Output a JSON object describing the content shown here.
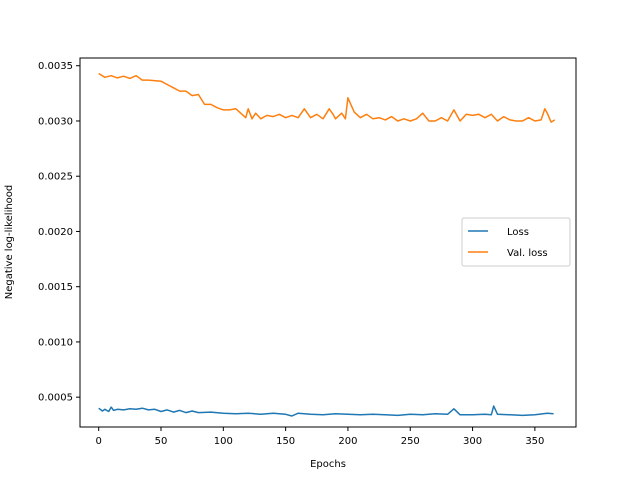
{
  "chart_data": {
    "type": "line",
    "title": "",
    "xlabel": "Epochs",
    "ylabel": "Negative log-likelihood",
    "xlim": [
      -15,
      383
    ],
    "ylim": [
      0.00023,
      0.00357
    ],
    "xticks": [
      0,
      50,
      100,
      150,
      200,
      250,
      300,
      350
    ],
    "yticks": [
      0.0005,
      0.001,
      0.0015,
      0.002,
      0.0025,
      0.003,
      0.0035
    ],
    "ytick_labels": [
      "0.0005",
      "0.0010",
      "0.0015",
      "0.0020",
      "0.0025",
      "0.0030",
      "0.0035"
    ],
    "grid": false,
    "legend_position": "center-right",
    "series": [
      {
        "name": "Loss",
        "color": "#1f77b4",
        "x": [
          0,
          3,
          5,
          8,
          10,
          12,
          15,
          20,
          25,
          30,
          35,
          40,
          45,
          50,
          55,
          60,
          65,
          70,
          75,
          80,
          90,
          100,
          110,
          120,
          130,
          140,
          150,
          155,
          160,
          170,
          180,
          190,
          200,
          210,
          220,
          230,
          240,
          250,
          260,
          270,
          280,
          285,
          290,
          300,
          310,
          315,
          317,
          320,
          330,
          340,
          350,
          360,
          365
        ],
        "y": [
          0.0004,
          0.000375,
          0.00039,
          0.00037,
          0.00041,
          0.00038,
          0.00039,
          0.000385,
          0.000395,
          0.00039,
          0.0004,
          0.000385,
          0.00039,
          0.00037,
          0.000385,
          0.000365,
          0.00038,
          0.00036,
          0.000375,
          0.00036,
          0.000365,
          0.000355,
          0.00035,
          0.000355,
          0.000345,
          0.000355,
          0.000345,
          0.00033,
          0.000355,
          0.000345,
          0.00034,
          0.00035,
          0.000345,
          0.00034,
          0.000345,
          0.00034,
          0.000335,
          0.000345,
          0.00034,
          0.00035,
          0.000345,
          0.000395,
          0.00034,
          0.00034,
          0.000345,
          0.00034,
          0.00042,
          0.000345,
          0.00034,
          0.000335,
          0.00034,
          0.000355,
          0.00035
        ]
      },
      {
        "name": "Val. loss",
        "color": "#ff7f0e",
        "x": [
          0,
          5,
          10,
          15,
          20,
          25,
          30,
          35,
          40,
          50,
          55,
          60,
          65,
          70,
          75,
          80,
          85,
          90,
          95,
          100,
          105,
          110,
          115,
          118,
          120,
          123,
          126,
          130,
          135,
          140,
          145,
          150,
          155,
          160,
          165,
          170,
          175,
          180,
          185,
          188,
          190,
          195,
          198,
          200,
          205,
          210,
          215,
          220,
          225,
          230,
          235,
          240,
          245,
          250,
          255,
          260,
          265,
          270,
          275,
          280,
          285,
          290,
          295,
          300,
          305,
          310,
          315,
          320,
          325,
          330,
          335,
          340,
          345,
          350,
          355,
          358,
          360,
          363,
          366
        ],
        "y": [
          0.00343,
          0.003395,
          0.00341,
          0.00339,
          0.003405,
          0.003385,
          0.00341,
          0.00337,
          0.00337,
          0.00336,
          0.00333,
          0.0033,
          0.00327,
          0.00327,
          0.00323,
          0.00324,
          0.00315,
          0.00315,
          0.00312,
          0.0031,
          0.0031,
          0.00311,
          0.00306,
          0.00303,
          0.00311,
          0.00302,
          0.00307,
          0.00302,
          0.00305,
          0.00304,
          0.00306,
          0.00303,
          0.00305,
          0.00303,
          0.00311,
          0.00303,
          0.00306,
          0.00302,
          0.00311,
          0.00306,
          0.00302,
          0.00307,
          0.00302,
          0.00321,
          0.00308,
          0.00303,
          0.00306,
          0.00302,
          0.00303,
          0.00301,
          0.00304,
          0.003,
          0.00302,
          0.003,
          0.00302,
          0.00307,
          0.003,
          0.003,
          0.00303,
          0.003,
          0.0031,
          0.003,
          0.00306,
          0.00305,
          0.00306,
          0.00303,
          0.00306,
          0.003,
          0.00304,
          0.00301,
          0.003,
          0.003,
          0.00303,
          0.003,
          0.00301,
          0.00311,
          0.00307,
          0.00299,
          0.00301
        ]
      }
    ]
  }
}
